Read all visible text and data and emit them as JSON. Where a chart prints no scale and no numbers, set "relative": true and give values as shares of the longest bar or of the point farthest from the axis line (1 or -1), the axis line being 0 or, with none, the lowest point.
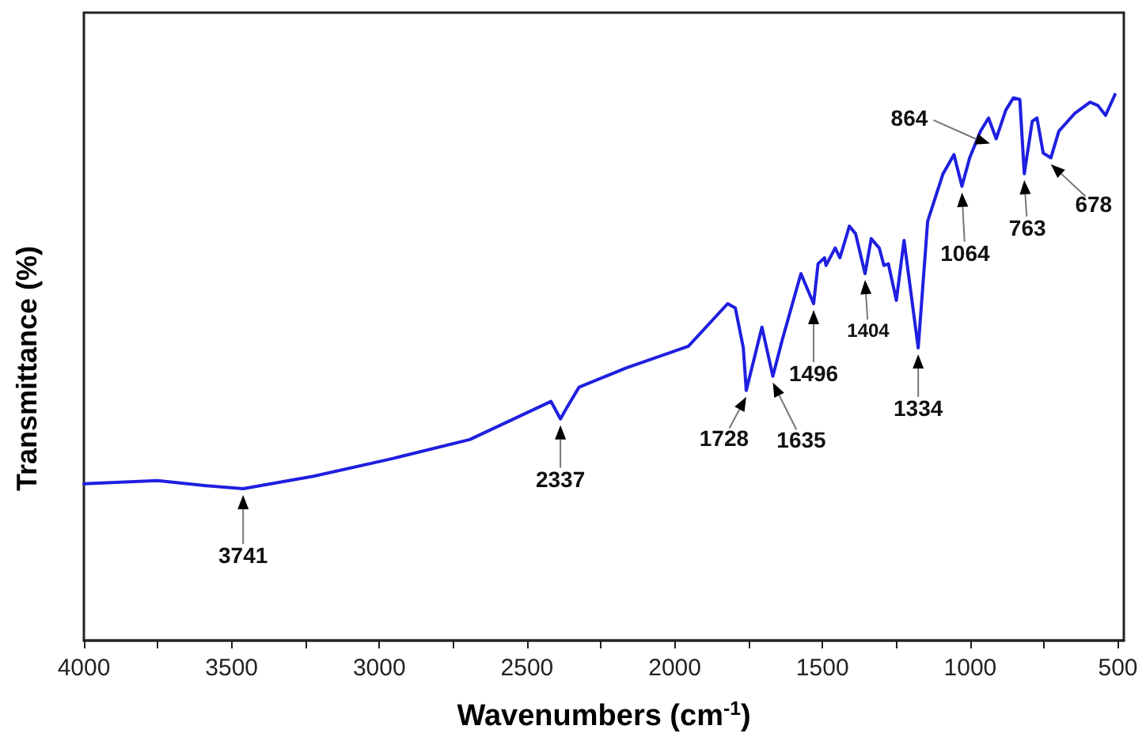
{
  "chart_data": {
    "type": "line",
    "xlabel": "Wavenumbers (cm$^{-1}$)",
    "ylabel": "Transmittance (%)",
    "relative": true,
    "grid": false,
    "marker": "none",
    "line_style": "solid",
    "xlim": [
      4000,
      480
    ],
    "xticks": [
      4000,
      {
        "value": 3750,
        "label": null
      },
      3500,
      {
        "value": 3250,
        "label": null
      },
      3000,
      {
        "value": 2750,
        "label": null
      },
      2500,
      {
        "value": 2250,
        "label": null
      },
      2000,
      {
        "value": 1750,
        "label": null
      },
      1500,
      {
        "value": 1250,
        "label": null
      },
      1000,
      {
        "value": 750,
        "label": null
      },
      500
    ],
    "series": [
      {
        "color": "#1f1fe0",
        "x": [
          4000,
          3751,
          3593,
          3461,
          3223,
          2958,
          2694,
          2419,
          2387,
          2366,
          2324,
          2165,
          1954,
          1821,
          1795,
          1768,
          1758,
          1705,
          1668,
          1636,
          1573,
          1530,
          1515,
          1493,
          1488,
          1457,
          1441,
          1409,
          1388,
          1356,
          1335,
          1308,
          1292,
          1277,
          1250,
          1224,
          1176,
          1144,
          1092,
          1055,
          1028,
          1002,
          965,
          938,
          912,
          880,
          854,
          832,
          817,
          790,
          774,
          753,
          727,
          700,
          647,
          594,
          568,
          542,
          515,
          510
        ],
        "values": [
          0.287,
          0.293,
          0.284,
          0.278,
          0.301,
          0.333,
          0.368,
          0.438,
          0.406,
          0.426,
          0.464,
          0.499,
          0.539,
          0.617,
          0.609,
          0.536,
          0.458,
          0.574,
          0.484,
          0.551,
          0.672,
          0.617,
          0.69,
          0.701,
          0.687,
          0.719,
          0.701,
          0.759,
          0.745,
          0.672,
          0.736,
          0.719,
          0.687,
          0.69,
          0.623,
          0.733,
          0.536,
          0.768,
          0.855,
          0.89,
          0.832,
          0.884,
          0.933,
          0.957,
          0.919,
          0.971,
          0.994,
          0.991,
          0.855,
          0.951,
          0.957,
          0.893,
          0.884,
          0.933,
          0.965,
          0.986,
          0.98,
          0.962,
          0.994,
          1
        ]
      }
    ],
    "annotations": [
      {
        "text": "3741",
        "x": 3461,
        "y": 0.278
      },
      {
        "text": "2337",
        "x": 2387,
        "y": 0.406
      },
      {
        "text": "1728",
        "x": 1758,
        "y": 0.458
      },
      {
        "text": "1635",
        "x": 1668,
        "y": 0.484
      },
      {
        "text": "1496",
        "x": 1530,
        "y": 0.617
      },
      {
        "text": "1404",
        "x": 1356,
        "y": 0.672
      },
      {
        "text": "1334",
        "x": 1176,
        "y": 0.536
      },
      {
        "text": "1064",
        "x": 1028,
        "y": 0.832
      },
      {
        "text": "864",
        "x": 933,
        "y": 0.922
      },
      {
        "text": "763",
        "x": 817,
        "y": 0.855
      },
      {
        "text": "678",
        "x": 727,
        "y": 0.884
      }
    ]
  }
}
